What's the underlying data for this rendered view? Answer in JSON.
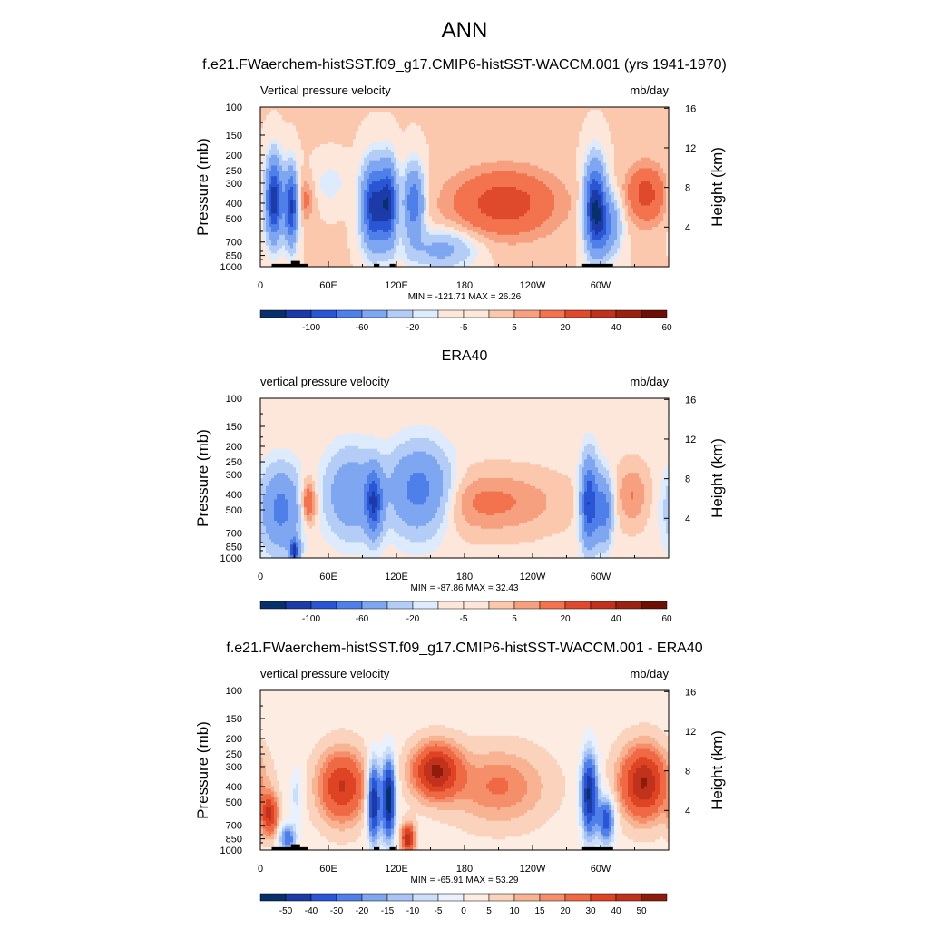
{
  "main_title": "ANN",
  "colors": {
    "div11": [
      "#08306b",
      "#1c3ba8",
      "#2a56d6",
      "#4f7fe8",
      "#7fa6f0",
      "#b4cdf7",
      "#ddebfc",
      "#fde7da",
      "#fbc8ae",
      "#f7a07f",
      "#f2734e",
      "#e04a2c",
      "#c0321c",
      "#9a2211",
      "#6e0f05"
    ],
    "diff": [
      "#08306b",
      "#1c3ba8",
      "#2a56d6",
      "#4f7fe8",
      "#7fa6f0",
      "#a9c4f5",
      "#ccdff9",
      "#e8f1fd",
      "#fdece2",
      "#fbd2bb",
      "#f8b393",
      "#f58f6a",
      "#ef6a44",
      "#de4424",
      "#c0321c",
      "#8d1c0b"
    ]
  },
  "panels": [
    {
      "title": "f.e21.FWaerchem-histSST.f09_g17.CMIP6-histSST-WACCM.001 (yrs 1941-1970)",
      "variable": "Vertical pressure velocity",
      "units": "mb/day",
      "stats": "MIN = -121.71  MAX =  26.26",
      "colorbar_labels": [
        "-100",
        "-60",
        "-20",
        "-5",
        "5",
        "20",
        "40",
        "60"
      ],
      "colorbar_nboxes": 16
    },
    {
      "title": "ERA40",
      "variable": "vertical pressure velocity",
      "units": "mb/day",
      "stats": "MIN = -87.86  MAX =  32.43",
      "colorbar_labels": [
        "-100",
        "-60",
        "-20",
        "-5",
        "5",
        "20",
        "40",
        "60"
      ],
      "colorbar_nboxes": 16
    },
    {
      "title": "f.e21.FWaerchem-histSST.f09_g17.CMIP6-histSST-WACCM.001 - ERA40",
      "variable": "vertical pressure velocity",
      "units": "mb/day",
      "stats": "MIN = -65.91  MAX =  53.29",
      "colorbar_labels": [
        "-50",
        "-40",
        "-30",
        "-20",
        "-15",
        "-10",
        "-5",
        "0",
        "5",
        "10",
        "15",
        "20",
        "30",
        "40",
        "50"
      ],
      "colorbar_nboxes": 16
    }
  ],
  "chart_data": {
    "type": "heatmap",
    "x_tick_labels": [
      "0",
      "60E",
      "120E",
      "180",
      "120W",
      "60W"
    ],
    "x_tick_lon": [
      0,
      60,
      120,
      180,
      240,
      300
    ],
    "x_range": [
      0,
      360
    ],
    "ylabel": "Pressure (mb)",
    "y_tick_labels": [
      "100",
      "150",
      "200",
      "250",
      "300",
      "400",
      "500",
      "700",
      "850",
      "1000"
    ],
    "y_tick_values": [
      100,
      150,
      200,
      250,
      300,
      400,
      500,
      700,
      850,
      1000
    ],
    "y_range": [
      1000,
      100
    ],
    "y_scale": "log",
    "y2label": "Height (km)",
    "y2_tick_labels": [
      "4",
      "8",
      "12",
      "16"
    ],
    "y2_tick_values": [
      4,
      8,
      12,
      16
    ],
    "fields": [
      {
        "panel": 0,
        "background": 0.2,
        "features": [
          {
            "lon": 12,
            "p": 380,
            "dlon": 5,
            "dz": 2.6,
            "a": -95
          },
          {
            "lon": 27,
            "p": 420,
            "dlon": 4,
            "dz": 2.4,
            "a": -85
          },
          {
            "lon": 40,
            "p": 380,
            "dlon": 5,
            "dz": 1.5,
            "a": 12
          },
          {
            "lon": 62,
            "p": 300,
            "dlon": 10,
            "dz": 1.5,
            "a": -8
          },
          {
            "lon": 100,
            "p": 420,
            "dlon": 7,
            "dz": 2.7,
            "a": -90
          },
          {
            "lon": 113,
            "p": 400,
            "dlon": 5,
            "dz": 2.6,
            "a": -85
          },
          {
            "lon": 135,
            "p": 400,
            "dlon": 6,
            "dz": 2.4,
            "a": -55
          },
          {
            "lon": 160,
            "p": 780,
            "dlon": 20,
            "dz": 1.3,
            "a": -25
          },
          {
            "lon": 215,
            "p": 400,
            "dlon": 32,
            "dz": 2.3,
            "a": 26
          },
          {
            "lon": 295,
            "p": 420,
            "dlon": 6,
            "dz": 2.8,
            "a": -95
          },
          {
            "lon": 305,
            "p": 550,
            "dlon": 8,
            "dz": 2,
            "a": -45
          },
          {
            "lon": 340,
            "p": 350,
            "dlon": 12,
            "dz": 2,
            "a": 24
          }
        ]
      },
      {
        "panel": 1,
        "background": -2,
        "features": [
          {
            "lon": 18,
            "p": 500,
            "dlon": 12,
            "dz": 2.7,
            "a": -45
          },
          {
            "lon": 30,
            "p": 900,
            "dlon": 3,
            "dz": 0.8,
            "a": -80
          },
          {
            "lon": 42,
            "p": 450,
            "dlon": 5,
            "dz": 1.6,
            "a": 25
          },
          {
            "lon": 80,
            "p": 400,
            "dlon": 15,
            "dz": 2.8,
            "a": -35
          },
          {
            "lon": 100,
            "p": 450,
            "dlon": 5,
            "dz": 2.2,
            "a": -70
          },
          {
            "lon": 140,
            "p": 380,
            "dlon": 18,
            "dz": 2.8,
            "a": -50
          },
          {
            "lon": 200,
            "p": 450,
            "dlon": 45,
            "dz": 2.2,
            "a": 14
          },
          {
            "lon": 290,
            "p": 450,
            "dlon": 5,
            "dz": 2.8,
            "a": -80
          },
          {
            "lon": 303,
            "p": 500,
            "dlon": 5,
            "dz": 2.2,
            "a": -50
          },
          {
            "lon": 328,
            "p": 400,
            "dlon": 10,
            "dz": 2.2,
            "a": 12
          }
        ]
      },
      {
        "panel": 2,
        "background": 3,
        "features": [
          {
            "lon": 8,
            "p": 600,
            "dlon": 5,
            "dz": 1.4,
            "a": 40
          },
          {
            "lon": 24,
            "p": 850,
            "dlon": 5,
            "dz": 1,
            "a": -30
          },
          {
            "lon": 32,
            "p": 450,
            "dlon": 4,
            "dz": 2,
            "a": -10
          },
          {
            "lon": 72,
            "p": 400,
            "dlon": 14,
            "dz": 2.4,
            "a": 38
          },
          {
            "lon": 100,
            "p": 500,
            "dlon": 4,
            "dz": 2.7,
            "a": -55
          },
          {
            "lon": 113,
            "p": 480,
            "dlon": 4,
            "dz": 2.7,
            "a": -62
          },
          {
            "lon": 130,
            "p": 850,
            "dlon": 4,
            "dz": 1,
            "a": 45
          },
          {
            "lon": 155,
            "p": 320,
            "dlon": 14,
            "dz": 1.8,
            "a": 48
          },
          {
            "lon": 210,
            "p": 400,
            "dlon": 28,
            "dz": 2.5,
            "a": 18
          },
          {
            "lon": 290,
            "p": 450,
            "dlon": 5,
            "dz": 2.8,
            "a": -55
          },
          {
            "lon": 305,
            "p": 650,
            "dlon": 5,
            "dz": 1.6,
            "a": -40
          },
          {
            "lon": 338,
            "p": 380,
            "dlon": 14,
            "dz": 2.4,
            "a": 48
          }
        ]
      }
    ],
    "topography": [
      {
        "panels": [
          0,
          2
        ],
        "lon0": 10,
        "lon1": 42,
        "p_top": 960
      },
      {
        "panels": [
          0,
          2
        ],
        "lon0": 27,
        "lon1": 35,
        "p_top": 920
      },
      {
        "panels": [
          0,
          2
        ],
        "lon0": 100,
        "lon1": 105,
        "p_top": 960
      },
      {
        "panels": [
          0,
          2
        ],
        "lon0": 114,
        "lon1": 119,
        "p_top": 960
      },
      {
        "panels": [
          0,
          2
        ],
        "lon0": 283,
        "lon1": 311,
        "p_top": 960
      }
    ]
  }
}
